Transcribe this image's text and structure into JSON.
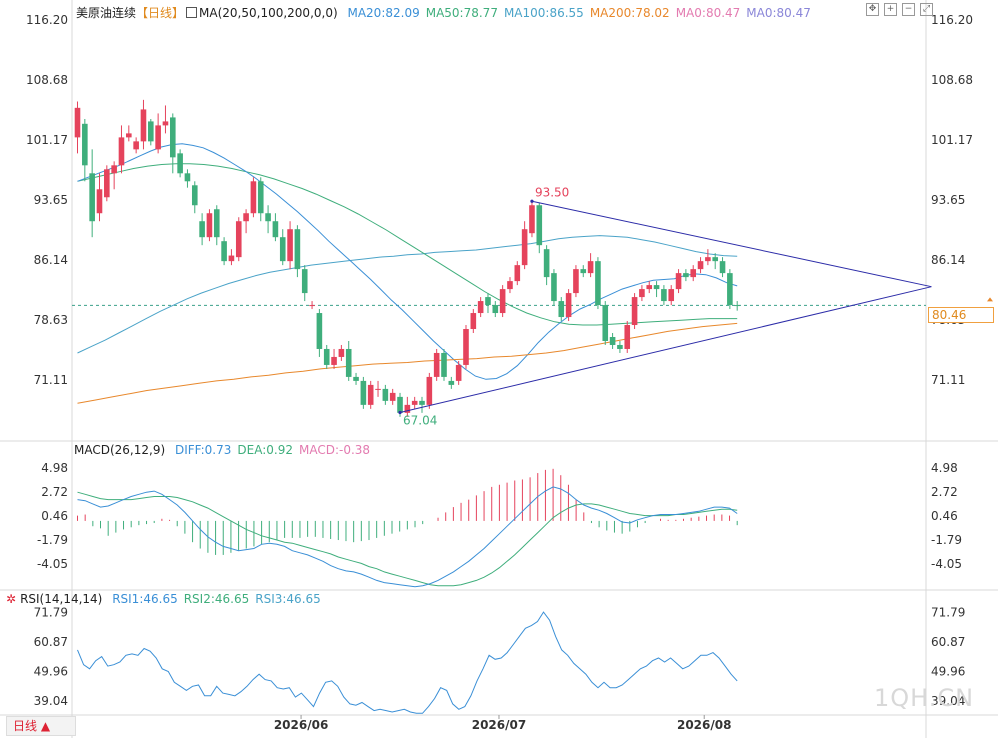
{
  "chart_data": {
    "type": "candlestick",
    "main": {
      "symbol": "美原油连续",
      "period": "【日线】",
      "ma_header": "MA(20,50,100,200,0,0)",
      "ma_legend": [
        {
          "label": "MA20:82.09",
          "color": "#3a8fd6"
        },
        {
          "label": "MA50:78.77",
          "color": "#3fae7c"
        },
        {
          "label": "MA100:86.55",
          "color": "#4aa3c8"
        },
        {
          "label": "MA200:78.02",
          "color": "#e8882c"
        },
        {
          "label": "MA0:80.47",
          "color": "#e37bb0"
        },
        {
          "label": "MA0:80.47",
          "color": "#8a86d8"
        }
      ],
      "ylim": [
        63.6,
        116.2
      ],
      "ticks": [
        "116.20",
        "108.68",
        "101.17",
        "93.65",
        "86.14",
        "78.63",
        "71.11"
      ],
      "current_price": "80.46",
      "annotations": {
        "high": "93.50",
        "low": "67.04"
      },
      "candles": [
        [
          101.5,
          105.2,
          106,
          99.5
        ],
        [
          103.2,
          98,
          103.8,
          96
        ],
        [
          97,
          91,
          100,
          89
        ],
        [
          92,
          95,
          97,
          91
        ],
        [
          94,
          97.5,
          98,
          93.5
        ],
        [
          97,
          98,
          98.5,
          95
        ],
        [
          98,
          101.5,
          103,
          97
        ],
        [
          101.5,
          102,
          103,
          101
        ],
        [
          100,
          101,
          101.5,
          99.5
        ],
        [
          101,
          105,
          106.2,
          100
        ],
        [
          103.5,
          101,
          103.8,
          100.5
        ],
        [
          100,
          103,
          104.5,
          99.5
        ],
        [
          103,
          103.5,
          105.5,
          102
        ],
        [
          104,
          99,
          104.5,
          97
        ],
        [
          99.5,
          97,
          100,
          96.5
        ],
        [
          97,
          96,
          97.5,
          95.2
        ],
        [
          95.5,
          93,
          96,
          92
        ],
        [
          91,
          89,
          92,
          88
        ],
        [
          89,
          92,
          92.5,
          88.5
        ],
        [
          92.5,
          89,
          93,
          88
        ],
        [
          88.5,
          86,
          89,
          85.5
        ],
        [
          86,
          86.7,
          87.5,
          85.5
        ],
        [
          86.5,
          91,
          91.5,
          86
        ],
        [
          91,
          92,
          92.5,
          89.5
        ],
        [
          92,
          96,
          96.5,
          91.5
        ],
        [
          96,
          92,
          96.5,
          91
        ],
        [
          92,
          91,
          93,
          89.5
        ],
        [
          91,
          89,
          92,
          88.5
        ],
        [
          89,
          86,
          90,
          85.5
        ],
        [
          86,
          90,
          91,
          85
        ],
        [
          90,
          85,
          90.5,
          84
        ],
        [
          85,
          82,
          85.5,
          81
        ],
        [
          80.5,
          80.5,
          81,
          80
        ],
        [
          79.5,
          75,
          80,
          74
        ],
        [
          75,
          73,
          75.5,
          72.5
        ],
        [
          73,
          74,
          75,
          72.5
        ],
        [
          74,
          75,
          75.5,
          73.5
        ],
        [
          75,
          71.5,
          76,
          71
        ],
        [
          71.5,
          71,
          72,
          70.5
        ],
        [
          71,
          68,
          71.5,
          67.5
        ],
        [
          68,
          70.5,
          71,
          67.5
        ],
        [
          70,
          70,
          71,
          69
        ],
        [
          70,
          68.5,
          70.5,
          68
        ],
        [
          68.5,
          69.5,
          70,
          68
        ],
        [
          69,
          67,
          69.5,
          66.5
        ],
        [
          67,
          68,
          69,
          66.5
        ],
        [
          68,
          68.5,
          69,
          67.5
        ],
        [
          68.5,
          68,
          69,
          67
        ],
        [
          68,
          71.5,
          72,
          67.5
        ],
        [
          71.5,
          74.5,
          75,
          71
        ],
        [
          74.5,
          71.5,
          75,
          71
        ],
        [
          71,
          70.5,
          71.5,
          70
        ],
        [
          71,
          73,
          73.5,
          70.5
        ],
        [
          73,
          77.5,
          78,
          72.5
        ],
        [
          77.5,
          79.5,
          80,
          77
        ],
        [
          79.5,
          81,
          81.5,
          79
        ],
        [
          81.5,
          80.5,
          82,
          79.5
        ],
        [
          80.5,
          79.5,
          81,
          79
        ],
        [
          79.5,
          82.5,
          83,
          79
        ],
        [
          82.5,
          83.5,
          84,
          82
        ],
        [
          83.5,
          85.5,
          86,
          83
        ],
        [
          85.5,
          90,
          91,
          85
        ],
        [
          89.5,
          93,
          93.5,
          89
        ],
        [
          93,
          88,
          93.3,
          87
        ],
        [
          87.5,
          84,
          88,
          83
        ],
        [
          84.5,
          81,
          85,
          80.5
        ],
        [
          81,
          79,
          81.5,
          78.5
        ],
        [
          79,
          82,
          82.5,
          78.5
        ],
        [
          82,
          85,
          85.5,
          81.5
        ],
        [
          85,
          84.5,
          85.5,
          84
        ],
        [
          84.5,
          86,
          87,
          84
        ],
        [
          86,
          80.5,
          86.5,
          80
        ],
        [
          80.5,
          76,
          81,
          75.5
        ],
        [
          76.5,
          75.5,
          77,
          75
        ],
        [
          75.5,
          75,
          76,
          74.5
        ],
        [
          75,
          78,
          78.5,
          74.5
        ],
        [
          78,
          81.5,
          82,
          77.5
        ],
        [
          81.5,
          82.5,
          83,
          81
        ],
        [
          82.5,
          83,
          83.5,
          82
        ],
        [
          83,
          82.5,
          83.5,
          81.5
        ],
        [
          82.5,
          81,
          83,
          80.5
        ],
        [
          81,
          82.5,
          83,
          80.5
        ],
        [
          82.5,
          84.5,
          85,
          82
        ],
        [
          84.5,
          84,
          85,
          83.5
        ],
        [
          84,
          85,
          85.5,
          83.5
        ],
        [
          85,
          86,
          86.5,
          84.5
        ],
        [
          86,
          86.5,
          87.5,
          85.5
        ],
        [
          86.5,
          86,
          87,
          85
        ],
        [
          86,
          84.5,
          86.5,
          84
        ],
        [
          84.5,
          80.5,
          85,
          80
        ],
        [
          80.5,
          80.4,
          81,
          79.8
        ]
      ],
      "ma20": [
        96,
        96.5,
        97,
        97.5,
        98,
        98.6,
        99.2,
        99.8,
        100.3,
        100.6,
        100.7,
        100.5,
        100.2,
        99.6,
        98.9,
        98.1,
        97.3,
        96.4,
        95.4,
        94.4,
        93.3,
        92.2,
        91,
        89.8,
        88.5,
        87.3,
        86.1,
        84.9,
        83.7,
        82.4,
        81.1,
        79.9,
        78.6,
        77.3,
        76,
        74.8,
        73.6,
        72.5,
        71.6,
        71.2,
        71.3,
        71.9,
        72.9,
        74.3,
        75.8,
        77.1,
        78.2,
        79.2,
        80,
        80.6,
        81.3,
        81.9,
        82.5,
        82.9,
        83.3,
        83.6,
        83.7,
        83.8,
        84.2,
        84.4,
        84.3,
        83.9,
        83.3,
        82.9
      ],
      "ma50": [
        96,
        96.4,
        96.8,
        97.2,
        97.6,
        97.9,
        98.1,
        98.2,
        98.2,
        98.1,
        97.9,
        97.6,
        97.2,
        96.8,
        96.3,
        95.7,
        95.1,
        94.4,
        93.6,
        92.8,
        91.9,
        90.9,
        89.9,
        88.8,
        87.7,
        86.6,
        85.5,
        84.4,
        83.3,
        82.2,
        81.2,
        80.3,
        79.5,
        78.9,
        78.4,
        78.1,
        78,
        78,
        78.1,
        78.2,
        78.3,
        78.4,
        78.5,
        78.6,
        78.7,
        78.8,
        78.8,
        78.8
      ],
      "ma100": [
        74.5,
        75.3,
        76.1,
        77,
        77.9,
        78.8,
        79.7,
        80.5,
        81.3,
        82,
        82.6,
        83.2,
        83.7,
        84.2,
        84.6,
        84.9,
        85.2,
        85.5,
        85.7,
        85.9,
        86.1,
        86.3,
        86.5,
        86.6,
        86.8,
        86.9,
        87.1,
        87.2,
        87.3,
        87.4,
        87.6,
        87.8,
        88,
        88.2,
        88.5,
        88.8,
        89,
        89.1,
        89.2,
        89.1,
        89,
        88.7,
        88.4,
        88,
        87.6,
        87.2,
        86.9,
        86.7,
        86.6
      ],
      "ma200": [
        68.2,
        68.6,
        69,
        69.4,
        69.8,
        70.1,
        70.4,
        70.7,
        71,
        71.2,
        71.5,
        71.7,
        72,
        72.2,
        72.5,
        72.7,
        72.9,
        73.1,
        73.2,
        73.3,
        73.5,
        73.6,
        73.7,
        73.8,
        74,
        74.1,
        74.3,
        74.5,
        74.8,
        75.2,
        75.6,
        76,
        76.4,
        76.8,
        77.2,
        77.5,
        77.8,
        78,
        78.2
      ],
      "trendlines": [
        {
          "from": [
            62,
            93.5
          ],
          "to": [
            116.5,
            82.8
          ]
        },
        {
          "from": [
            44,
            67.04
          ],
          "to": [
            116.5,
            82.8
          ]
        }
      ]
    },
    "macd": {
      "header": "MACD(26,12,9)",
      "legend": [
        {
          "label": "DIFF:0.73",
          "color": "#3a8fd6"
        },
        {
          "label": "DEA:0.92",
          "color": "#3fae7c"
        },
        {
          "label": "MACD:-0.38",
          "color": "#e37bb0"
        }
      ],
      "ylim": [
        -6.5,
        6.2
      ],
      "ticks": [
        "4.98",
        "2.72",
        "0.46",
        "-1.79",
        "-4.05"
      ],
      "diff": [
        2,
        1.9,
        1.6,
        1.3,
        1.4,
        1.7,
        2,
        2.3,
        2.5,
        2.7,
        2.8,
        2.5,
        2,
        1.5,
        0.8,
        0,
        -0.8,
        -1.5,
        -2,
        -2.4,
        -2.6,
        -2.8,
        -2.7,
        -2.6,
        -2.2,
        -2.1,
        -2.2,
        -2.4,
        -2.8,
        -3,
        -3.2,
        -3.5,
        -3.8,
        -4.2,
        -4.5,
        -4.7,
        -4.8,
        -5,
        -5.3,
        -5.6,
        -5.8,
        -5.9,
        -6,
        -6.1,
        -6.2,
        -6.1,
        -5.9,
        -5.6,
        -5.2,
        -4.8,
        -4.3,
        -3.8,
        -3.2,
        -2.6,
        -1.9,
        -1.2,
        -0.5,
        0.2,
        0.9,
        1.6,
        2.3,
        2.8,
        3.2,
        3,
        2.6,
        2,
        1.5,
        1.2,
        1,
        0.7,
        0.3,
        -0.1,
        -0.2,
        0.1,
        0.3,
        0.5,
        0.6,
        0.6,
        0.6,
        0.7,
        0.8,
        0.9,
        1.1,
        1.3,
        1.3,
        1.2,
        0.7
      ],
      "dea": [
        2.7,
        2.5,
        2.3,
        2.1,
        2,
        2,
        2,
        2,
        2.1,
        2.2,
        2.3,
        2.3,
        2.3,
        2.2,
        2,
        1.8,
        1.5,
        1.2,
        0.8,
        0.4,
        0,
        -0.4,
        -0.8,
        -1.1,
        -1.4,
        -1.6,
        -1.8,
        -2,
        -2.1,
        -2.3,
        -2.5,
        -2.7,
        -2.9,
        -3.1,
        -3.4,
        -3.6,
        -3.8,
        -4,
        -4.3,
        -4.5,
        -4.8,
        -5,
        -5.2,
        -5.4,
        -5.6,
        -5.8,
        -6,
        -6.1,
        -6.1,
        -6.1,
        -6,
        -5.8,
        -5.6,
        -5.3,
        -4.9,
        -4.4,
        -3.8,
        -3.2,
        -2.5,
        -1.8,
        -1.1,
        -0.4,
        0.3,
        0.8,
        1.2,
        1.5,
        1.6,
        1.6,
        1.5,
        1.3,
        1.1,
        0.9,
        0.7,
        0.6,
        0.5,
        0.5,
        0.5,
        0.5,
        0.6,
        0.6,
        0.7,
        0.8,
        0.9,
        1,
        1.1,
        1.1,
        1
      ],
      "hist": [
        0.5,
        0.6,
        -0.5,
        -0.7,
        -1.4,
        -1.1,
        -0.8,
        -0.6,
        -0.4,
        -0.3,
        -0.2,
        0.2,
        0.1,
        -0.5,
        -1.2,
        -2,
        -2.6,
        -3,
        -3.2,
        -3.2,
        -3,
        -2.8,
        -2.6,
        -2.4,
        -2.2,
        -2,
        -1.8,
        -1.6,
        -1.6,
        -1.6,
        -1.5,
        -1.5,
        -1.6,
        -1.7,
        -1.8,
        -1.9,
        -2,
        -1.9,
        -1.8,
        -1.6,
        -1.4,
        -1.2,
        -1,
        -0.8,
        -0.6,
        -0.3,
        0,
        0.3,
        0.8,
        1.3,
        1.7,
        2,
        2.4,
        2.8,
        3.2,
        3.4,
        3.6,
        3.8,
        3.9,
        4.1,
        4.5,
        4.8,
        4.9,
        4.3,
        3.4,
        2,
        0.8,
        -0.2,
        -0.6,
        -0.9,
        -1.1,
        -1.2,
        -1,
        -0.6,
        -0.2,
        0,
        0.2,
        0.1,
        0.1,
        0.2,
        0.3,
        0.4,
        0.5,
        0.6,
        0.6,
        0.5,
        -0.4
      ]
    },
    "rsi": {
      "header": "RSI(14,14,14)",
      "legend": [
        {
          "label": "RSI1:46.65",
          "color": "#3a8fd6"
        },
        {
          "label": "RSI2:46.65",
          "color": "#3fae7c"
        },
        {
          "label": "RSI3:46.65",
          "color": "#4aa3c8"
        }
      ],
      "ylim": [
        33.5,
        75
      ],
      "ticks": [
        "71.79",
        "60.87",
        "49.96",
        "39.04"
      ],
      "values": [
        58,
        52.5,
        51,
        54,
        55.5,
        52,
        52.5,
        53.5,
        56,
        56.5,
        56,
        58.5,
        57.5,
        55,
        51,
        50,
        46,
        44.5,
        43,
        44.5,
        45,
        41,
        41,
        44.5,
        42,
        41.5,
        41,
        42.5,
        44.5,
        47,
        49,
        47,
        46.5,
        44,
        43.5,
        44,
        40.5,
        42,
        39.5,
        37,
        42,
        46,
        46.5,
        44.5,
        40.5,
        38,
        37.5,
        38.5,
        37,
        35.5,
        36,
        35.5,
        35,
        35.5,
        36,
        35,
        34.5,
        34.5,
        37,
        40,
        44,
        43,
        38,
        36,
        37,
        41,
        46.5,
        51,
        56,
        54.5,
        55,
        57,
        60,
        63,
        66,
        67,
        68.5,
        72,
        69,
        63,
        58,
        56,
        53,
        51,
        49,
        46,
        44,
        46,
        44,
        44,
        45,
        47,
        49,
        51,
        52,
        54,
        55,
        53.5,
        55,
        53,
        51,
        52,
        54,
        56,
        56,
        57,
        55,
        52,
        49,
        46.5
      ]
    },
    "xaxis": {
      "labels": [
        "2026/06",
        "2026/07",
        "2026/08"
      ]
    },
    "period_button": "日线 ▲",
    "watermark": "1QH.CN"
  }
}
